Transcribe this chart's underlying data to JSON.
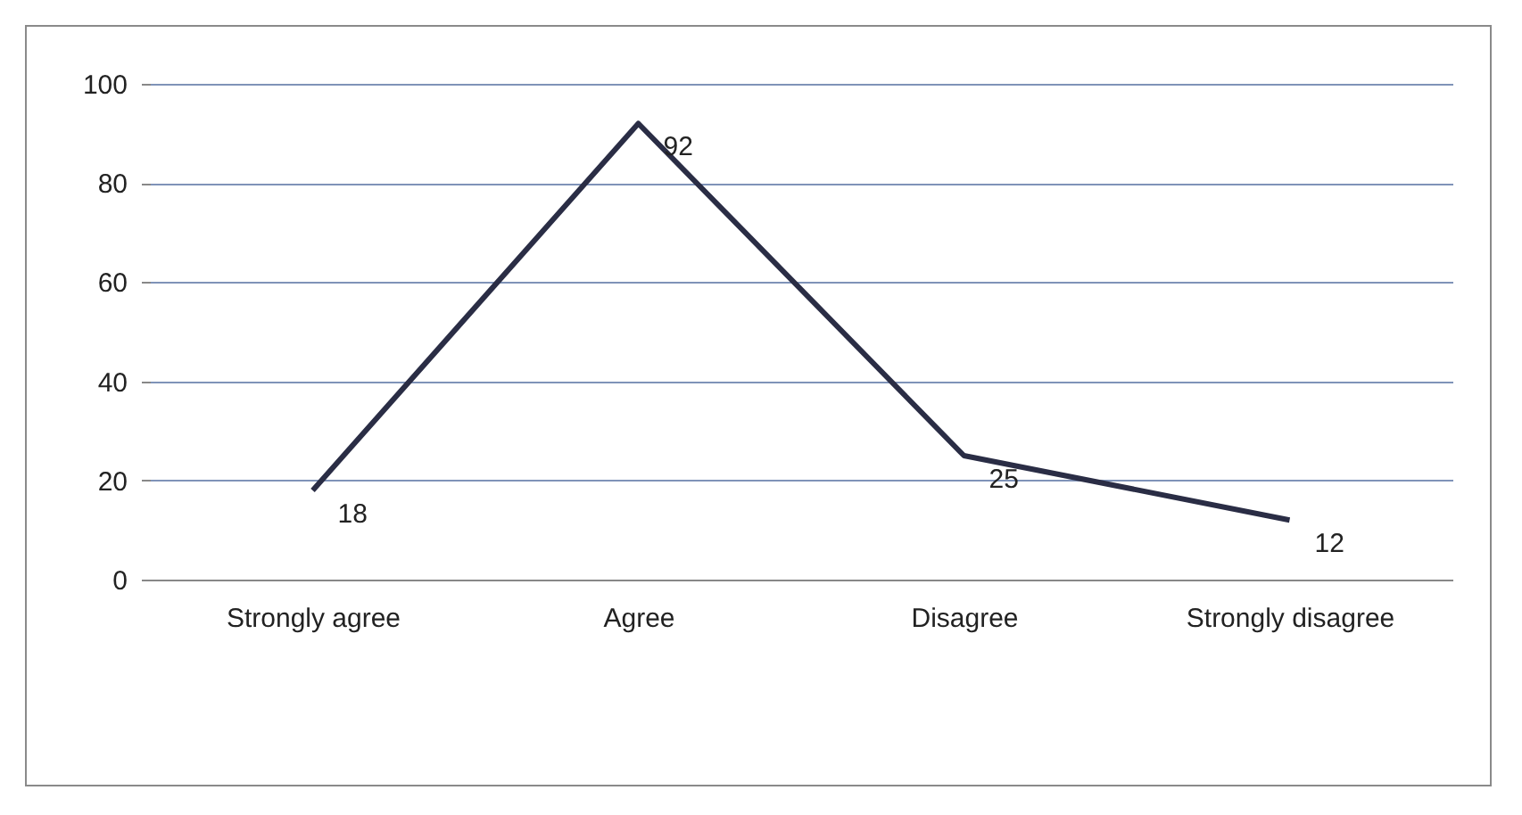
{
  "chart_data": {
    "type": "line",
    "categories": [
      "Strongly agree",
      "Agree",
      "Disagree",
      "Strongly disagree"
    ],
    "series": [
      {
        "color": "#2a2d45",
        "values": [
          18,
          92,
          25,
          12
        ]
      }
    ],
    "ylim": [
      0,
      100
    ],
    "yticks": [
      0,
      20,
      40,
      60,
      80,
      100
    ],
    "grid": "y",
    "data_labels": true,
    "marker": "none",
    "line_style": "solid"
  }
}
